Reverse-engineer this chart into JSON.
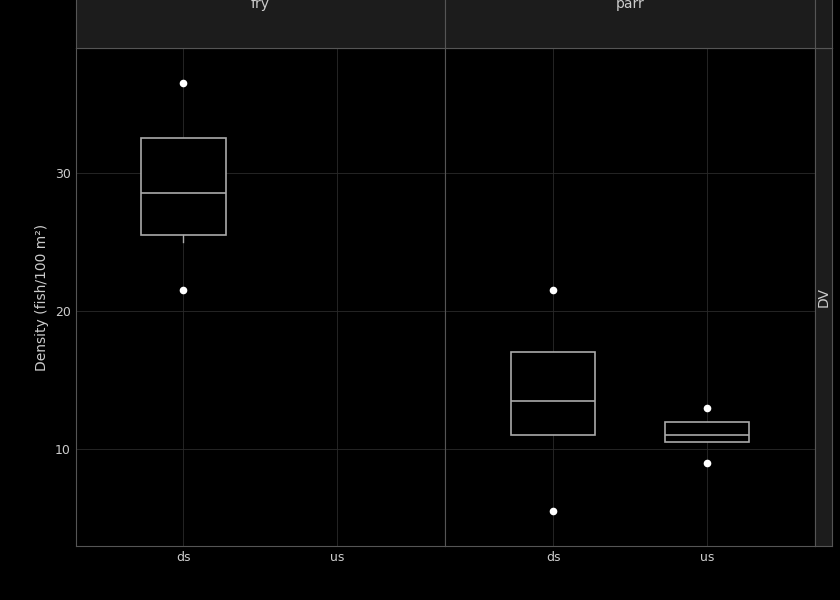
{
  "panels": [
    "fry",
    "parr"
  ],
  "categories": [
    "ds",
    "us"
  ],
  "background_color": "#000000",
  "panel_header_bg": "#1c1c1c",
  "panel_header_border": "#555555",
  "box_edge_color": "#aaaaaa",
  "box_face_color": "#000000",
  "median_color": "#aaaaaa",
  "whisker_color": "#aaaaaa",
  "flier_color": "#ffffff",
  "grid_color": "#2a2a2a",
  "text_color": "#cccccc",
  "ylabel": "Density (fish/100 m²)",
  "right_label": "DV",
  "ylim": [
    3,
    39
  ],
  "yticks": [
    10,
    20,
    30
  ],
  "panel_label_fontsize": 10,
  "axis_label_fontsize": 10,
  "tick_label_fontsize": 9,
  "box_width": 0.55,
  "fry_ds": {
    "q1": 25.5,
    "median": 28.5,
    "q3": 32.5,
    "whisker_low": 25.0,
    "whisker_high": 32.5,
    "outliers": [
      21.5,
      36.5
    ]
  },
  "fry_us": null,
  "parr_ds": {
    "q1": 11.0,
    "median": 13.5,
    "q3": 17.0,
    "whisker_low": 11.0,
    "whisker_high": 17.0,
    "outliers": [
      5.5,
      21.5
    ]
  },
  "parr_us": {
    "q1": 10.5,
    "median": 11.0,
    "q3": 12.0,
    "whisker_low": 10.5,
    "whisker_high": 12.0,
    "outliers": [
      9.0,
      13.0
    ]
  }
}
